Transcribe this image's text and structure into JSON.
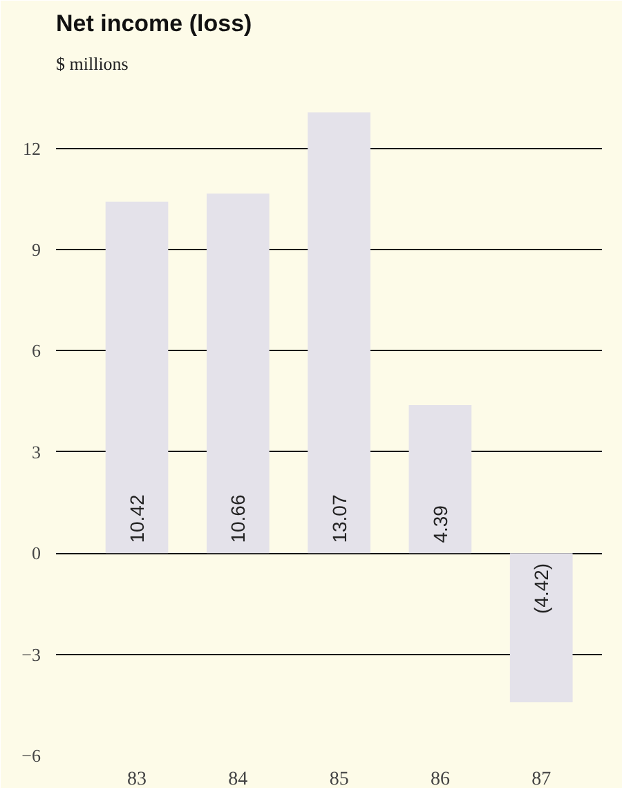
{
  "chart_data": {
    "type": "bar",
    "title": "Net income (loss)",
    "subtitle": "$ millions",
    "categories": [
      "83",
      "84",
      "85",
      "86",
      "87"
    ],
    "values": [
      10.42,
      10.66,
      13.07,
      4.39,
      -4.42
    ],
    "value_labels": [
      "10.42",
      "10.66",
      "13.07",
      "4.39",
      "(4.42)"
    ],
    "color": "#e4e2ea",
    "ylim": [
      -6,
      14
    ],
    "yticks": [
      {
        "value": -6,
        "label": "−6"
      },
      {
        "value": -3,
        "label": "−3"
      },
      0,
      3,
      6,
      9,
      12
    ],
    "grid": "y"
  }
}
